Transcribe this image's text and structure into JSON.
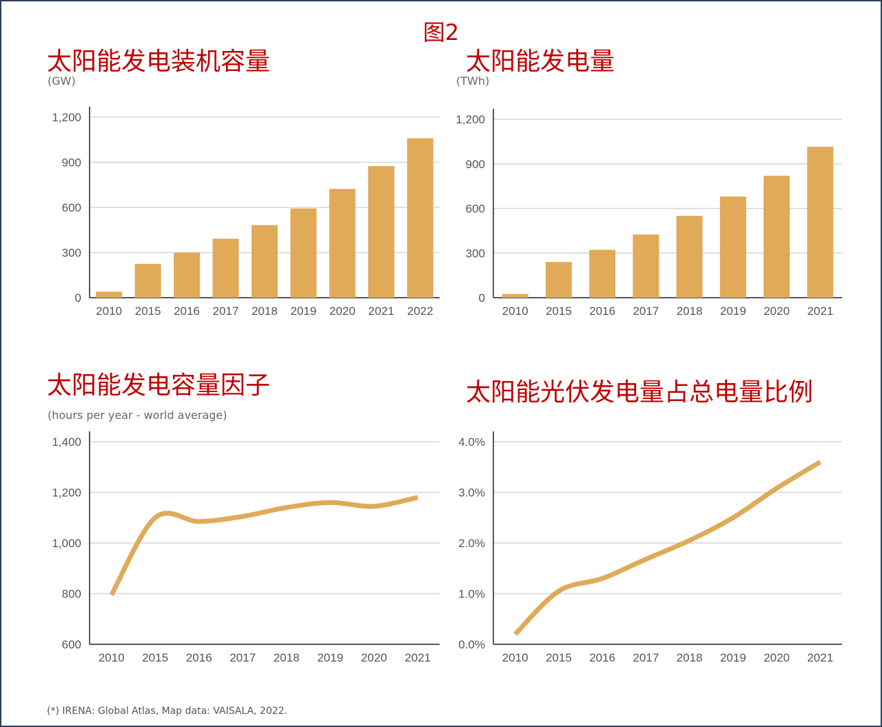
{
  "figure_title": "图2",
  "footnote": "(*) IRENA: Global Atlas, Map data: VAISALA, 2022.",
  "accent_color": "#e0aa58",
  "chart_data": [
    {
      "type": "bar",
      "title": "太阳能发电装机容量",
      "unit": "(GW)",
      "categories": [
        "2010",
        "2015",
        "2016",
        "2017",
        "2018",
        "2019",
        "2020",
        "2021",
        "2022"
      ],
      "values": [
        40,
        225,
        300,
        392,
        482,
        593,
        723,
        875,
        1060
      ],
      "yticks": [
        "0",
        "300",
        "600",
        "900",
        "1,200"
      ],
      "ylim": [
        0,
        1200
      ],
      "grid": true,
      "color": "#e0aa58"
    },
    {
      "type": "bar",
      "title": "太阳能发电量",
      "unit": "(TWh)",
      "categories": [
        "2010",
        "2015",
        "2016",
        "2017",
        "2018",
        "2019",
        "2020",
        "2021"
      ],
      "values": [
        25,
        240,
        322,
        425,
        550,
        680,
        820,
        1015
      ],
      "yticks": [
        "0",
        "300",
        "600",
        "900",
        "1,200"
      ],
      "ylim": [
        0,
        1200
      ],
      "grid": true,
      "color": "#e0aa58"
    },
    {
      "type": "line",
      "title": "太阳能发电容量因子",
      "unit": "(hours per year - world average)",
      "categories": [
        "2010",
        "2015",
        "2016",
        "2017",
        "2018",
        "2019",
        "2020",
        "2021"
      ],
      "values": [
        795,
        1100,
        1085,
        1105,
        1140,
        1160,
        1145,
        1180
      ],
      "yticks": [
        "600",
        "800",
        "1,000",
        "1,200",
        "1,400"
      ],
      "ylim": [
        600,
        1400
      ],
      "grid": true,
      "color": "#e0aa58"
    },
    {
      "type": "line",
      "title": "太阳能光伏发电量占总电量比例",
      "unit": "",
      "categories": [
        "2010",
        "2015",
        "2016",
        "2017",
        "2018",
        "2019",
        "2020",
        "2021"
      ],
      "values": [
        0.2,
        1.05,
        1.3,
        1.68,
        2.05,
        2.5,
        3.08,
        3.6
      ],
      "yticks": [
        "0.0%",
        "1.0%",
        "2.0%",
        "3.0%",
        "4.0%"
      ],
      "ylim": [
        0,
        4
      ],
      "grid": true,
      "color": "#e0aa58"
    }
  ]
}
